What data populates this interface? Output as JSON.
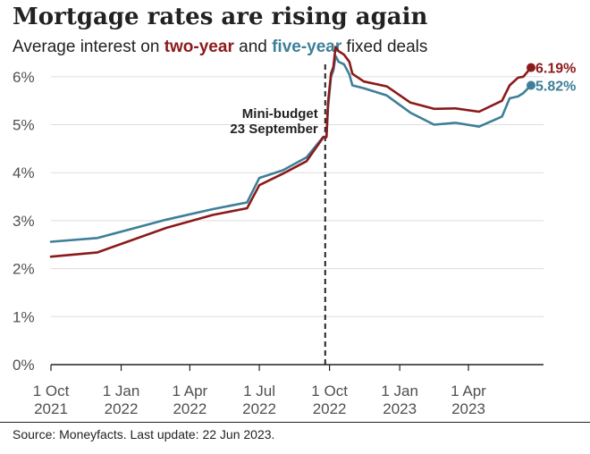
{
  "chart_data": {
    "type": "line",
    "title": "Mortgage rates are rising again",
    "subtitle": {
      "prefix": "Average interest on ",
      "series1": "two-year",
      "middle": " and ",
      "series2": "five-year",
      "suffix": " fixed deals"
    },
    "ylim": [
      0,
      6.5
    ],
    "yticks": [
      {
        "value": 0,
        "label": "0%"
      },
      {
        "value": 1,
        "label": "1%"
      },
      {
        "value": 2,
        "label": "2%"
      },
      {
        "value": 3,
        "label": "3%"
      },
      {
        "value": 4,
        "label": "4%"
      },
      {
        "value": 5,
        "label": "5%"
      },
      {
        "value": 6,
        "label": "6%"
      }
    ],
    "xlim": [
      "2021-10-01",
      "2023-06-22"
    ],
    "xticks": [
      {
        "date": "2021-10-01",
        "line1": "1 Oct",
        "line2": "2021"
      },
      {
        "date": "2022-01-01",
        "line1": "1 Jan",
        "line2": "2022"
      },
      {
        "date": "2022-04-01",
        "line1": "1 Apr",
        "line2": "2022"
      },
      {
        "date": "2022-07-01",
        "line1": "1 Jul",
        "line2": "2022"
      },
      {
        "date": "2022-10-01",
        "line1": "1 Oct",
        "line2": "2022"
      },
      {
        "date": "2023-01-01",
        "line1": "1 Jan",
        "line2": "2023"
      },
      {
        "date": "2023-04-01",
        "line1": "1 Apr",
        "line2": "2023"
      }
    ],
    "grid": true,
    "series": [
      {
        "name": "two-year",
        "color": "#8b1a1a",
        "end_label": "6.19%",
        "points": [
          [
            "2021-10-01",
            2.25
          ],
          [
            "2021-12-01",
            2.34
          ],
          [
            "2022-03-01",
            2.85
          ],
          [
            "2022-05-01",
            3.12
          ],
          [
            "2022-06-15",
            3.26
          ],
          [
            "2022-07-01",
            3.74
          ],
          [
            "2022-08-01",
            3.98
          ],
          [
            "2022-09-01",
            4.24
          ],
          [
            "2022-09-23",
            4.74
          ],
          [
            "2022-09-27",
            4.74
          ],
          [
            "2022-09-29",
            5.45
          ],
          [
            "2022-10-03",
            6.07
          ],
          [
            "2022-10-06",
            6.2
          ],
          [
            "2022-10-09",
            6.62
          ],
          [
            "2022-10-13",
            6.53
          ],
          [
            "2022-10-20",
            6.46
          ],
          [
            "2022-10-27",
            6.31
          ],
          [
            "2022-10-31",
            6.06
          ],
          [
            "2022-11-15",
            5.9
          ],
          [
            "2022-12-15",
            5.8
          ],
          [
            "2023-01-15",
            5.46
          ],
          [
            "2023-02-15",
            5.33
          ],
          [
            "2023-03-15",
            5.34
          ],
          [
            "2023-04-15",
            5.27
          ],
          [
            "2023-05-15",
            5.5
          ],
          [
            "2023-05-25",
            5.82
          ],
          [
            "2023-06-05",
            5.98
          ],
          [
            "2023-06-12",
            6.0
          ],
          [
            "2023-06-22",
            6.19
          ]
        ]
      },
      {
        "name": "five-year",
        "color": "#3e7f98",
        "end_label": "5.82%",
        "points": [
          [
            "2021-10-01",
            2.56
          ],
          [
            "2021-12-01",
            2.64
          ],
          [
            "2022-03-01",
            3.02
          ],
          [
            "2022-05-01",
            3.24
          ],
          [
            "2022-06-15",
            3.38
          ],
          [
            "2022-07-01",
            3.89
          ],
          [
            "2022-08-01",
            4.05
          ],
          [
            "2022-09-01",
            4.32
          ],
          [
            "2022-09-23",
            4.75
          ],
          [
            "2022-09-27",
            4.75
          ],
          [
            "2022-09-29",
            5.35
          ],
          [
            "2022-10-03",
            6.0
          ],
          [
            "2022-10-06",
            6.13
          ],
          [
            "2022-10-09",
            6.43
          ],
          [
            "2022-10-13",
            6.31
          ],
          [
            "2022-10-20",
            6.26
          ],
          [
            "2022-10-27",
            6.05
          ],
          [
            "2022-10-31",
            5.82
          ],
          [
            "2022-11-15",
            5.76
          ],
          [
            "2022-12-15",
            5.61
          ],
          [
            "2023-01-15",
            5.25
          ],
          [
            "2023-02-15",
            5.0
          ],
          [
            "2023-03-15",
            5.04
          ],
          [
            "2023-04-15",
            4.96
          ],
          [
            "2023-05-15",
            5.17
          ],
          [
            "2023-05-25",
            5.55
          ],
          [
            "2023-06-05",
            5.59
          ],
          [
            "2023-06-12",
            5.66
          ],
          [
            "2023-06-22",
            5.82
          ]
        ]
      }
    ],
    "annotations": [
      {
        "date": "2022-09-23",
        "line1": "Mini-budget",
        "line2": "23 September"
      }
    ]
  },
  "source": "Source: Moneyfacts. Last update: 22 Jun 2023."
}
